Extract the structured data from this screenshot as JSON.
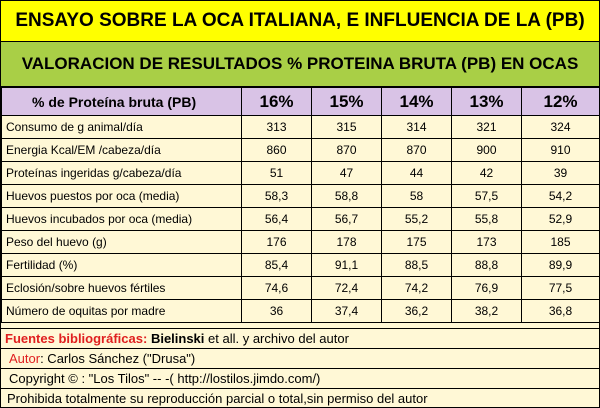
{
  "title": "ENSAYO SOBRE LA OCA ITALIANA, E INFLUENCIA DE LA (PB)",
  "subtitle": "VALORACION DE RESULTADOS % PROTEINA BRUTA (PB) EN OCAS",
  "table": {
    "header_label": "% de Proteína bruta (PB)",
    "columns": [
      "16%",
      "15%",
      "14%",
      "13%",
      "12%"
    ],
    "rows": [
      {
        "label": "Consumo de g animal/día",
        "values": [
          "313",
          "315",
          "314",
          "321",
          "324"
        ]
      },
      {
        "label": "Energia Kcal/EM /cabeza/día",
        "values": [
          "860",
          "870",
          "870",
          "900",
          "910"
        ]
      },
      {
        "label": "Proteínas ingeridas g/cabeza/día",
        "values": [
          "51",
          "47",
          "44",
          "42",
          "39"
        ]
      },
      {
        "label": "Huevos puestos por oca (media)",
        "values": [
          "58,3",
          "58,8",
          "58",
          "57,5",
          "54,2"
        ]
      },
      {
        "label": "Huevos incubados por oca (media)",
        "values": [
          "56,4",
          "56,7",
          "55,2",
          "55,8",
          "52,9"
        ]
      },
      {
        "label": "Peso del huevo (g)",
        "values": [
          "176",
          "178",
          "175",
          "173",
          "185"
        ]
      },
      {
        "label": "Fertilidad (%)",
        "values": [
          "85,4",
          "91,1",
          "88,5",
          "88,8",
          "89,9"
        ]
      },
      {
        "label": "Eclosión/sobre huevos fértiles",
        "values": [
          "74,6",
          "72,4",
          "74,2",
          "76,9",
          "77,5"
        ]
      },
      {
        "label": "Número de oquitas por madre",
        "values": [
          "36",
          "37,4",
          "36,2",
          "38,2",
          "36,8"
        ]
      }
    ]
  },
  "footer": {
    "sources_label": "Fuentes bibliográficas:",
    "sources_author": "Bielinski",
    "sources_rest": " et all. y archivo del autor",
    "author_label": "Autor",
    "author_value": ": Carlos Sánchez  (\"Drusa\")",
    "copyright": "Copyright © : \"Los Tilos\" -- -( http://lostilos.jimdo.com/)",
    "rights": "Prohibida totalmente su reproducción parcial o total,sin permiso del autor"
  },
  "colors": {
    "title_bg": "#ffff00",
    "subtitle_bg": "#a9cf46",
    "header_bg": "#d9c3e6",
    "body_bg": "#fff8d6",
    "accent_red": "#e02020"
  }
}
